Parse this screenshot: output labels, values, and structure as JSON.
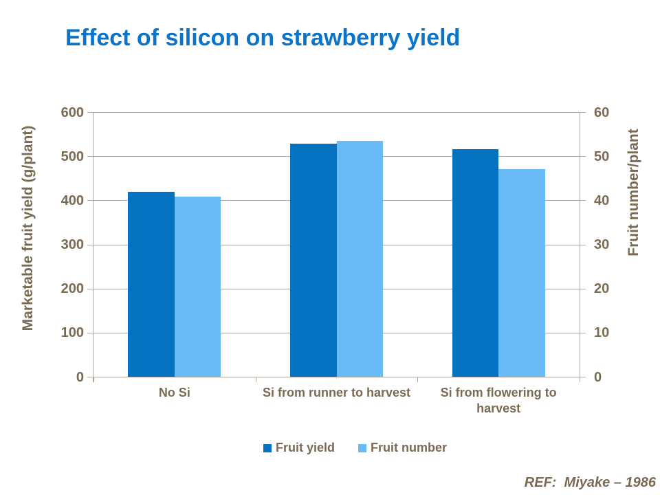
{
  "chart_data": {
    "type": "bar",
    "title": "Effect of silicon on strawberry yield",
    "categories": [
      "No Si",
      "Si from runner to harvest",
      "Si from flowering to harvest"
    ],
    "series": [
      {
        "name": "Fruit yield",
        "axis": "left",
        "values": [
          420,
          529,
          516
        ]
      },
      {
        "name": "Fruit number",
        "axis": "right",
        "values": [
          40.8,
          53.5,
          47.1
        ]
      }
    ],
    "left_axis": {
      "label": "Marketable fruit yield (g/plant)",
      "min": 0,
      "max": 600,
      "step": 100,
      "tick_labels": [
        "0",
        "100",
        "200",
        "300",
        "400",
        "500",
        "600"
      ]
    },
    "right_axis": {
      "label": "Fruit number/plant",
      "min": 0,
      "max": 60,
      "step": 10,
      "tick_labels": [
        "0",
        "10",
        "20",
        "30",
        "40",
        "50",
        "60"
      ]
    },
    "legend": {
      "position": "bottom",
      "entries": [
        "Fruit yield",
        "Fruit number"
      ]
    },
    "grid": true,
    "reference": "REF:  Miyake – 1986"
  },
  "colors": {
    "title": "#0B74C8",
    "fruit_yield_bar": "#0471C1",
    "fruit_number_bar": "#69BBF8",
    "axis_text": "#7A6A53",
    "gridline": "#B2A69C"
  }
}
